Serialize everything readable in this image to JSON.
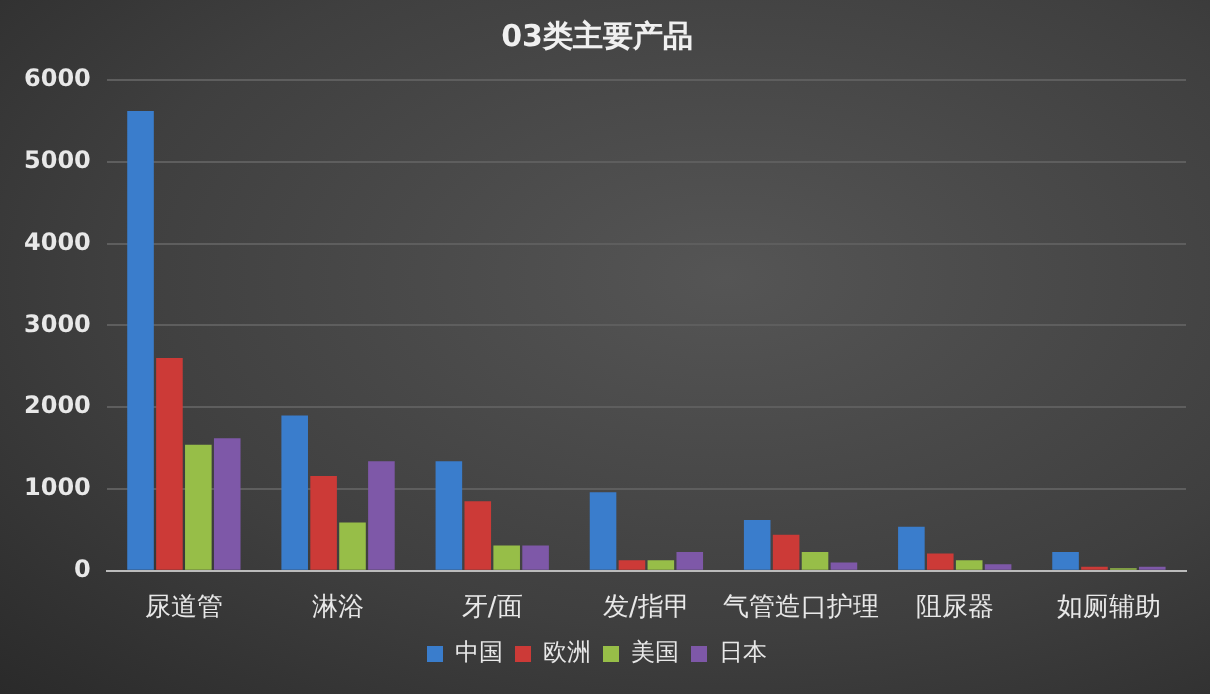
{
  "chart_data": {
    "type": "bar",
    "title": "03类主要产品",
    "categories": [
      "尿道管",
      "淋浴",
      "牙/面",
      "发/指甲",
      "气管造口护理",
      "阻尿器",
      "如厕辅助"
    ],
    "series": [
      {
        "name": "中国",
        "color": "#3a7dcc",
        "values": [
          5620,
          1900,
          1340,
          960,
          620,
          540,
          230
        ]
      },
      {
        "name": "欧洲",
        "color": "#cc3a37",
        "values": [
          2600,
          1160,
          850,
          130,
          440,
          210,
          50
        ]
      },
      {
        "name": "美国",
        "color": "#97be48",
        "values": [
          1540,
          590,
          310,
          130,
          230,
          130,
          30
        ]
      },
      {
        "name": "日本",
        "color": "#7e58a8",
        "values": [
          1620,
          1340,
          310,
          230,
          100,
          80,
          50
        ]
      }
    ],
    "ylim": [
      0,
      6000
    ],
    "yticks": [
      0,
      1000,
      2000,
      3000,
      4000,
      5000,
      6000
    ],
    "grid": "y",
    "legend": "bottom"
  }
}
